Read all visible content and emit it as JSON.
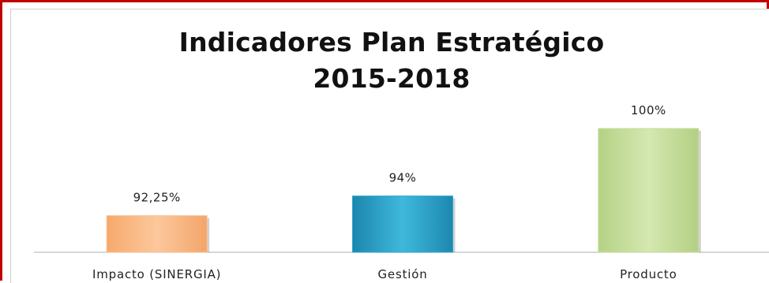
{
  "chart_data": {
    "type": "bar",
    "title_lines": [
      "Indicadores Plan Estratégico",
      "2015-2018"
    ],
    "categories": [
      "Impacto (SINERGIA)",
      "Gestión",
      "Producto"
    ],
    "values": [
      92.25,
      94,
      100
    ],
    "data_labels": [
      "92,25%",
      "94%",
      "100%"
    ],
    "colors": [
      "#fbbf8e",
      "#2fa4cb",
      "#c6de9e"
    ],
    "ylim": [
      89,
      100
    ],
    "grid": false,
    "legend": "none"
  }
}
